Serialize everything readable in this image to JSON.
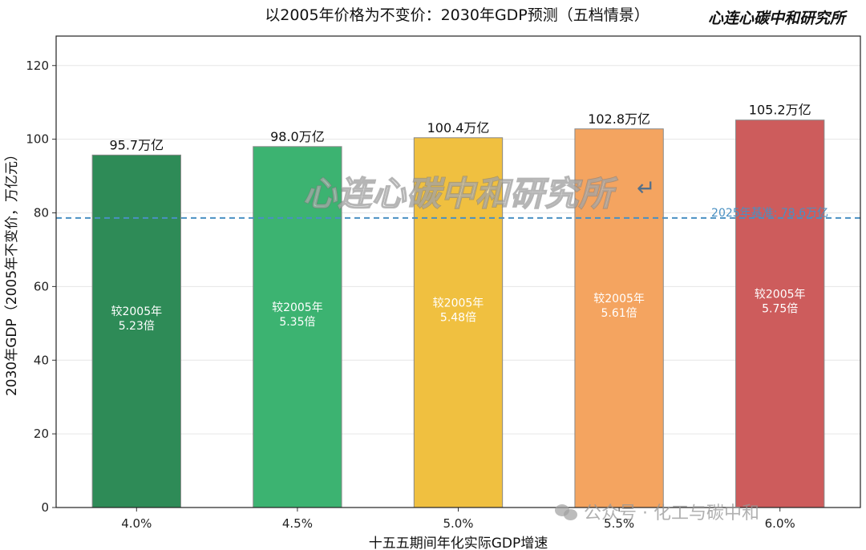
{
  "title": "以2005年价格为不变价：2030年GDP预测（五档情景）",
  "brand": "心连心碳中和研究所",
  "watermark_center": "心连心碳中和研究所",
  "watermark_footer": "公众号 · 化工与碳中和",
  "chart_data": {
    "type": "bar",
    "categories": [
      "4.0%",
      "4.5%",
      "5.0%",
      "5.5%",
      "6.0%"
    ],
    "values": [
      95.7,
      98.0,
      100.4,
      102.8,
      105.2
    ],
    "value_labels": [
      "95.7万亿",
      "98.0万亿",
      "100.4万亿",
      "102.8万亿",
      "105.2万亿"
    ],
    "ratio_labels": [
      [
        "较2005年",
        "5.23倍"
      ],
      [
        "较2005年",
        "5.35倍"
      ],
      [
        "较2005年",
        "5.48倍"
      ],
      [
        "较2005年",
        "5.61倍"
      ],
      [
        "较2005年",
        "5.75倍"
      ]
    ],
    "colors": [
      "#2e8b57",
      "#3cb371",
      "#f0c040",
      "#f4a460",
      "#cd5c5c"
    ],
    "xlabel": "十五五期间年化实际GDP增速",
    "ylabel": "2030年GDP（2005年不变价，万亿元）",
    "ylim": [
      0,
      128
    ],
    "yticks": [
      0,
      20,
      40,
      60,
      80,
      100,
      120
    ],
    "grid": true,
    "reference_line": {
      "value": 78.6,
      "label": "2025年基准: 78.6万亿",
      "color": "#4a90c2"
    }
  }
}
